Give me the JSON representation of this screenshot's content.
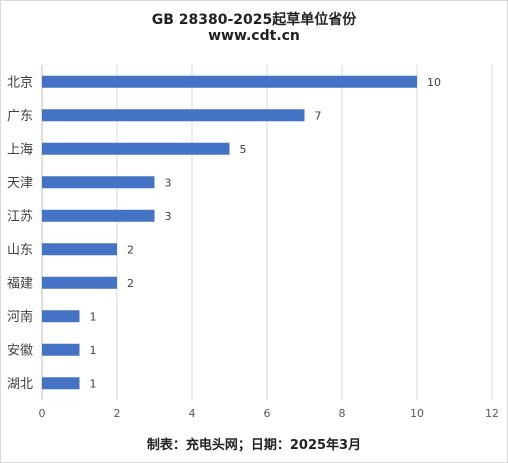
{
  "chart_data": {
    "type": "bar",
    "orientation": "horizontal",
    "title": "GB 28380-2025起草单位省份",
    "subtitle": "www.cdt.cn",
    "footer": "制表：充电头网；日期：2025年3月",
    "categories": [
      "北京",
      "广东",
      "上海",
      "天津",
      "江苏",
      "山东",
      "福建",
      "河南",
      "安徽",
      "湖北"
    ],
    "values": [
      10,
      7,
      5,
      3,
      3,
      2,
      2,
      1,
      1,
      1
    ],
    "xlim": [
      0,
      12
    ],
    "xticks": [
      "0",
      "2",
      "4",
      "6",
      "8",
      "10",
      "12"
    ],
    "grid": true,
    "legend": "none",
    "bar_color": "#4472c4",
    "gridline_color": "#d9d9d9",
    "axis_color": "#bfbfbf"
  }
}
